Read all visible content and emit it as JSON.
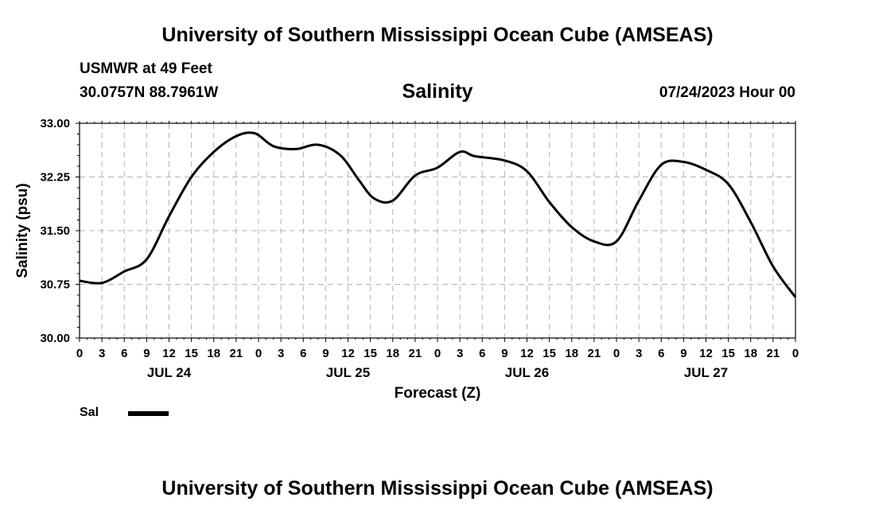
{
  "header": {
    "title": "University of Southern Mississippi Ocean Cube (AMSEAS)",
    "station": "USMWR at 49 Feet",
    "coordinates": "30.0757N  88.7961W",
    "run_time": "07/24/2023 Hour 00"
  },
  "footer": {
    "title": "University of Southern Mississippi Ocean Cube (AMSEAS)"
  },
  "chart_data": {
    "type": "line",
    "title": "Salinity",
    "xlabel": "Forecast (Z)",
    "ylabel": "Salinity (psu)",
    "xlim": [
      0,
      96
    ],
    "ylim": [
      30.0,
      33.0
    ],
    "y_ticks": [
      30.0,
      30.75,
      31.5,
      32.25,
      33.0
    ],
    "y_tick_labels": [
      "30.00",
      "30.75",
      "31.50",
      "32.25",
      "33.00"
    ],
    "x_ticks": [
      0,
      3,
      6,
      9,
      12,
      15,
      18,
      21,
      24,
      27,
      30,
      33,
      36,
      39,
      42,
      45,
      48,
      51,
      54,
      57,
      60,
      63,
      66,
      69,
      72,
      75,
      78,
      81,
      84,
      87,
      90,
      93,
      96
    ],
    "x_tick_labels": [
      "0",
      "3",
      "6",
      "9",
      "12",
      "15",
      "18",
      "21",
      "0",
      "3",
      "6",
      "9",
      "12",
      "15",
      "18",
      "21",
      "0",
      "3",
      "6",
      "9",
      "12",
      "15",
      "18",
      "21",
      "0",
      "3",
      "6",
      "9",
      "12",
      "15",
      "18",
      "21",
      "0"
    ],
    "day_labels": [
      {
        "label": "JUL 24",
        "x": 12
      },
      {
        "label": "JUL 25",
        "x": 36
      },
      {
        "label": "JUL 26",
        "x": 60
      },
      {
        "label": "JUL 27",
        "x": 84
      }
    ],
    "grid": true,
    "legend_position": "bottom-left",
    "series": [
      {
        "name": "Sal",
        "color": "#000000",
        "x": [
          0,
          3,
          6,
          9,
          12,
          15,
          18,
          21,
          23.5,
          26,
          29,
          32,
          35,
          37.5,
          39.5,
          42,
          45,
          48,
          51,
          53,
          57,
          60,
          63,
          66,
          69,
          72,
          75,
          78,
          81,
          84,
          87,
          90,
          93,
          96
        ],
        "y": [
          30.8,
          30.77,
          30.93,
          31.1,
          31.7,
          32.25,
          32.6,
          32.82,
          32.86,
          32.68,
          32.64,
          32.7,
          32.55,
          32.2,
          31.95,
          31.92,
          32.27,
          32.38,
          32.6,
          32.54,
          32.48,
          32.33,
          31.9,
          31.55,
          31.35,
          31.35,
          31.92,
          32.42,
          32.46,
          32.35,
          32.15,
          31.62,
          31.0,
          30.57
        ]
      }
    ]
  }
}
